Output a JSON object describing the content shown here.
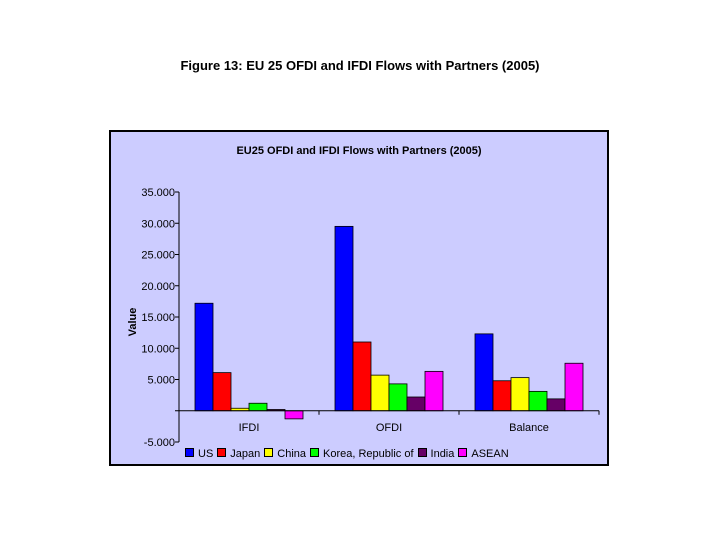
{
  "page_title": "Figure 13: EU 25 OFDI and IFDI Flows with Partners (2005)",
  "chart_data": {
    "type": "bar",
    "title": "EU25 OFDI and IFDI Flows with Partners (2005)",
    "ylabel": "Value",
    "xlabel": "",
    "ylim": [
      -5000,
      35000
    ],
    "yticks": [
      -5000,
      0,
      5000,
      10000,
      15000,
      20000,
      25000,
      30000,
      35000
    ],
    "ytick_labels": [
      "-5.000",
      "",
      "5.000",
      "10.000",
      "15.000",
      "20.000",
      "25.000",
      "30.000",
      "35.000"
    ],
    "categories": [
      "IFDI",
      "OFDI",
      "Balance"
    ],
    "legend_position": "bottom",
    "grid": false,
    "series": [
      {
        "name": "US",
        "color": "#0000ff",
        "values": [
          17200,
          29500,
          12300
        ]
      },
      {
        "name": "Japan",
        "color": "#ff0000",
        "values": [
          6100,
          11000,
          4800
        ]
      },
      {
        "name": "China",
        "color": "#ffff00",
        "values": [
          400,
          5700,
          5300
        ]
      },
      {
        "name": "Korea, Republic of",
        "color": "#00ff00",
        "values": [
          1200,
          4300,
          3100
        ]
      },
      {
        "name": "India",
        "color": "#660066",
        "values": [
          200,
          2200,
          1900
        ]
      },
      {
        "name": "ASEAN",
        "color": "#ff00ff",
        "values": [
          -1300,
          6300,
          7600
        ]
      }
    ]
  }
}
